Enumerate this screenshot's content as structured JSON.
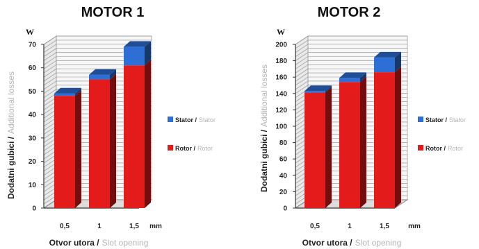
{
  "chart_data": [
    {
      "type": "bar",
      "stacked": true,
      "style": "3d",
      "title": "MOTOR 1",
      "y_unit": "W",
      "ylabel": [
        "Dodatni gubici /",
        "Additional losses"
      ],
      "xlabel": [
        "Otvor utora /",
        "Slot opening"
      ],
      "x_unit": "mm",
      "categories": [
        "0,5",
        "1",
        "1,5"
      ],
      "yticks": [
        "0",
        "10",
        "20",
        "30",
        "40",
        "50",
        "60",
        "70"
      ],
      "ylim": [
        0,
        70
      ],
      "series": [
        {
          "name": [
            "Rotor /",
            "Rotor"
          ],
          "color": "#e41b1b",
          "values": [
            48,
            55,
            61
          ]
        },
        {
          "name": [
            "Stator /",
            "Stator"
          ],
          "color": "#2e6fd6",
          "values": [
            1,
            2,
            8
          ]
        }
      ],
      "legend": "right"
    },
    {
      "type": "bar",
      "stacked": true,
      "style": "3d",
      "title": "MOTOR 2",
      "y_unit": "W",
      "ylabel": [
        "Dodatni gubici /",
        "Additional losses"
      ],
      "xlabel": [
        "Otvor utora /",
        "Slot opening"
      ],
      "x_unit": "mm",
      "categories": [
        "0,5",
        "1",
        "1,5"
      ],
      "yticks": [
        "0",
        "20",
        "40",
        "60",
        "80",
        "100",
        "120",
        "140",
        "160",
        "180",
        "200"
      ],
      "ylim": [
        0,
        200
      ],
      "series": [
        {
          "name": [
            "Rotor /",
            "Rotor"
          ],
          "color": "#e41b1b",
          "values": [
            141,
            154,
            166
          ]
        },
        {
          "name": [
            "Stator /",
            "Stator"
          ],
          "color": "#2e6fd6",
          "values": [
            2,
            5,
            18
          ]
        }
      ],
      "legend": "right"
    }
  ]
}
